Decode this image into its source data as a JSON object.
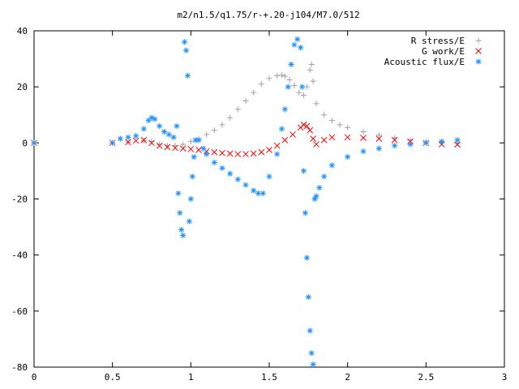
{
  "chart_data": {
    "type": "scatter",
    "title": "m2/n1.5/q1.75/r-+.20-j104/M7.0/512",
    "xlabel": "",
    "ylabel": "",
    "xlim": [
      0,
      3
    ],
    "ylim": [
      -80,
      40
    ],
    "xticks": [
      "0",
      "0.5",
      "1",
      "1.5",
      "2",
      "2.5",
      "3"
    ],
    "yticks": [
      "40",
      "20",
      "0",
      "-20",
      "-40",
      "-60",
      "-80"
    ],
    "grid": false,
    "legend": "top-right",
    "series": [
      {
        "name": "R stress/E",
        "marker": "plus",
        "color": "#a0a0a0",
        "x": [
          0.0,
          0.5,
          0.6,
          0.7,
          0.75,
          0.8,
          0.85,
          0.9,
          0.95,
          1.0,
          1.05,
          1.1,
          1.15,
          1.2,
          1.25,
          1.3,
          1.35,
          1.4,
          1.45,
          1.5,
          1.55,
          1.58,
          1.6,
          1.63,
          1.66,
          1.69,
          1.72,
          1.74,
          1.76,
          1.77,
          1.78,
          1.8,
          1.85,
          1.9,
          1.95,
          2.0,
          2.1,
          2.2,
          2.3,
          2.4,
          2.5,
          2.6,
          2.7
        ],
        "y": [
          0.0,
          0.0,
          0.3,
          0.8,
          0.5,
          -0.5,
          -1.0,
          -1.0,
          -0.5,
          0.5,
          1.5,
          3.0,
          4.5,
          6.5,
          9.0,
          12.0,
          15.0,
          18.0,
          21.0,
          23.0,
          24.0,
          24.2,
          23.8,
          22.5,
          20.5,
          18.0,
          17.0,
          20.0,
          26.0,
          28.0,
          22.0,
          14.0,
          10.0,
          8.0,
          6.5,
          5.5,
          4.0,
          2.8,
          1.8,
          1.0,
          0.4,
          0.1,
          0.0
        ]
      },
      {
        "name": "G work/E",
        "marker": "cross",
        "color": "#ff0000",
        "x": [
          0.0,
          0.5,
          0.6,
          0.65,
          0.7,
          0.75,
          0.8,
          0.85,
          0.9,
          0.95,
          1.0,
          1.05,
          1.1,
          1.15,
          1.2,
          1.25,
          1.3,
          1.35,
          1.4,
          1.45,
          1.5,
          1.55,
          1.6,
          1.65,
          1.7,
          1.72,
          1.74,
          1.76,
          1.78,
          1.8,
          1.85,
          1.9,
          2.0,
          2.1,
          2.2,
          2.3,
          2.4,
          2.5,
          2.6,
          2.7
        ],
        "y": [
          0.0,
          0.0,
          0.3,
          0.8,
          1.0,
          0.0,
          -1.0,
          -1.5,
          -1.8,
          -2.0,
          -2.2,
          -2.5,
          -3.0,
          -3.3,
          -3.6,
          -3.8,
          -4.0,
          -4.0,
          -3.8,
          -3.3,
          -2.5,
          -1.0,
          1.0,
          3.0,
          5.5,
          6.5,
          6.0,
          4.5,
          1.5,
          -0.5,
          1.0,
          2.0,
          2.0,
          1.8,
          1.5,
          1.0,
          0.5,
          0.0,
          -0.5,
          -0.6
        ]
      },
      {
        "name": "Acoustic flux/E",
        "marker": "star",
        "color": "#1e90ff",
        "x": [
          0.0,
          0.5,
          0.55,
          0.6,
          0.65,
          0.7,
          0.73,
          0.75,
          0.77,
          0.8,
          0.83,
          0.86,
          0.89,
          0.91,
          0.92,
          0.93,
          0.94,
          0.95,
          0.96,
          0.97,
          0.98,
          0.99,
          1.0,
          1.01,
          1.02,
          1.03,
          1.05,
          1.08,
          1.1,
          1.15,
          1.2,
          1.25,
          1.3,
          1.35,
          1.4,
          1.43,
          1.46,
          1.5,
          1.55,
          1.58,
          1.6,
          1.62,
          1.64,
          1.66,
          1.68,
          1.7,
          1.71,
          1.72,
          1.73,
          1.74,
          1.75,
          1.76,
          1.77,
          1.78,
          1.79,
          1.8,
          1.82,
          1.85,
          1.9,
          2.0,
          2.1,
          2.2,
          2.3,
          2.4,
          2.5,
          2.6,
          2.7
        ],
        "y": [
          0.0,
          0.0,
          1.5,
          2.0,
          2.5,
          5.0,
          8.0,
          9.0,
          8.5,
          6.0,
          4.0,
          3.0,
          2.0,
          6.0,
          -18.0,
          -25.0,
          -31.0,
          -33.0,
          36.0,
          33.0,
          24.0,
          -28.0,
          -20.0,
          -12.0,
          -5.0,
          1.0,
          1.0,
          -2.0,
          -4.0,
          -7.0,
          -9.0,
          -11.0,
          -13.0,
          -15.0,
          -17.0,
          -18.0,
          -18.0,
          -12.0,
          -4.0,
          5.0,
          12.0,
          20.0,
          28.0,
          35.0,
          37.0,
          34.0,
          20.0,
          -10.0,
          -25.0,
          -41.0,
          -55.0,
          -67.0,
          -75.0,
          -79.0,
          -20.0,
          -19.0,
          -16.0,
          -12.0,
          -8.0,
          -5.0,
          -3.0,
          -2.0,
          -1.0,
          -0.5,
          0.0,
          0.5,
          1.0
        ]
      }
    ]
  }
}
